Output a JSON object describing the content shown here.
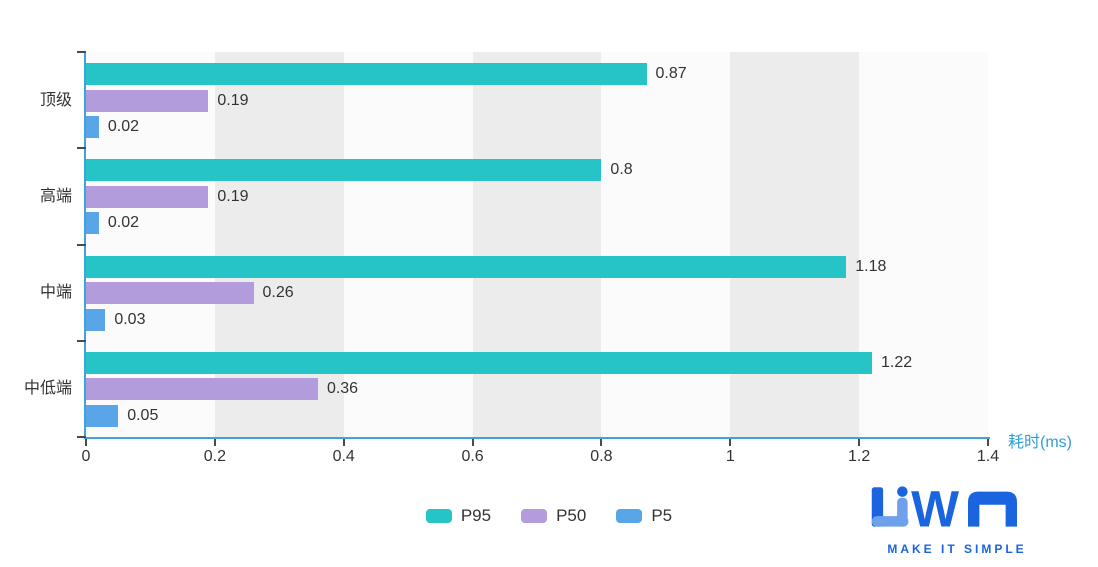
{
  "chart_data": {
    "type": "bar",
    "orientation": "horizontal",
    "categories": [
      "顶级",
      "高端",
      "中端",
      "中低端"
    ],
    "series": [
      {
        "name": "P95",
        "color": "#26c3c7",
        "values": [
          0.87,
          0.8,
          1.18,
          1.22
        ]
      },
      {
        "name": "P50",
        "color": "#b29cdb",
        "values": [
          0.19,
          0.19,
          0.26,
          0.36
        ]
      },
      {
        "name": "P5",
        "color": "#58a6e7",
        "values": [
          0.02,
          0.02,
          0.03,
          0.05
        ]
      }
    ],
    "x_axis": {
      "label": "耗时(ms)",
      "min": 0,
      "max": 1.4,
      "tick_values": [
        0,
        0.2,
        0.4,
        0.6,
        0.8,
        1,
        1.2,
        1.4
      ],
      "tick_labels": [
        "0",
        "0.2",
        "0.4",
        "0.6",
        "0.8",
        "1",
        "1.2",
        "1.4"
      ]
    },
    "legend": {
      "position": "bottom",
      "items": [
        "P95",
        "P50",
        "P5"
      ]
    },
    "grid": {
      "vertical_stripes": true,
      "stripe_intervals": [
        [
          0.2,
          0.4
        ],
        [
          0.6,
          0.8
        ],
        [
          1.0,
          1.2
        ]
      ]
    },
    "value_labels_shown": true
  },
  "colors": {
    "axis_line": "#3fa3d9",
    "axis_title": "#2d9fd9",
    "tick_mark": "#4a4a4a",
    "text": "#333333",
    "stripe": "#ececec",
    "plot_bg": "#fbfbfb",
    "page_bg": "#ffffff"
  },
  "logo": {
    "text": "LiWA",
    "tagline": "MAKE IT SIMPLE",
    "primary_color": "#1a64e0",
    "accent_color": "#6fa0eb"
  }
}
